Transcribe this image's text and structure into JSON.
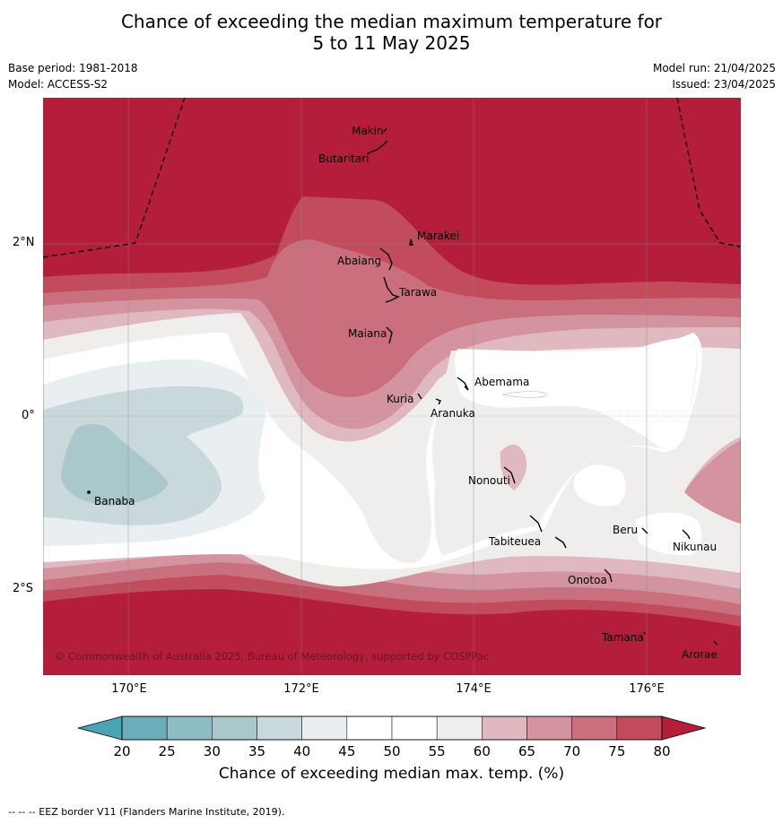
{
  "title_line1": "Chance of exceeding the median maximum temperature for",
  "title_line2": "5 to 11 May 2025",
  "meta": {
    "base_period": "Base period: 1981-2018",
    "model": "Model: ACCESS-S2",
    "model_run": "Model run: 21/04/2025",
    "issued": "Issued: 23/04/2025"
  },
  "axes": {
    "lat_labels": [
      "2°N",
      "0°",
      "2°S"
    ],
    "lon_labels": [
      "170°E",
      "172°E",
      "174°E",
      "176°E"
    ]
  },
  "places": [
    "Makin",
    "Butaritari",
    "Marakei",
    "Abaiang",
    "Tarawa",
    "Maiana",
    "Abemama",
    "Kuria",
    "Aranuka",
    "Banaba",
    "Nonouti",
    "Tabiteuea",
    "Beru",
    "Nikunau",
    "Onotoa",
    "Tamana",
    "Arorae"
  ],
  "copyright": "© Commonwealth of Australia 2025, Bureau of Meteorology, supported by COSPPac",
  "colorbar": {
    "ticks": [
      "20",
      "25",
      "30",
      "35",
      "40",
      "45",
      "50",
      "55",
      "60",
      "65",
      "70",
      "75",
      "80"
    ],
    "label": "Chance of exceeding median max. temp. (%)",
    "colors": [
      "#4aa4b4",
      "#6badbb",
      "#8ebcc3",
      "#a9c8cc",
      "#c9d8da",
      "#e9eff1",
      "#ffffff",
      "#ffffff",
      "#efeeed",
      "#e0b8bf",
      "#d3949f",
      "#c96f7d",
      "#c24b5c",
      "#b41e3a"
    ]
  },
  "footer": "--  --  -- EEZ border V11 (Flanders Marine Institute, 2019)."
}
